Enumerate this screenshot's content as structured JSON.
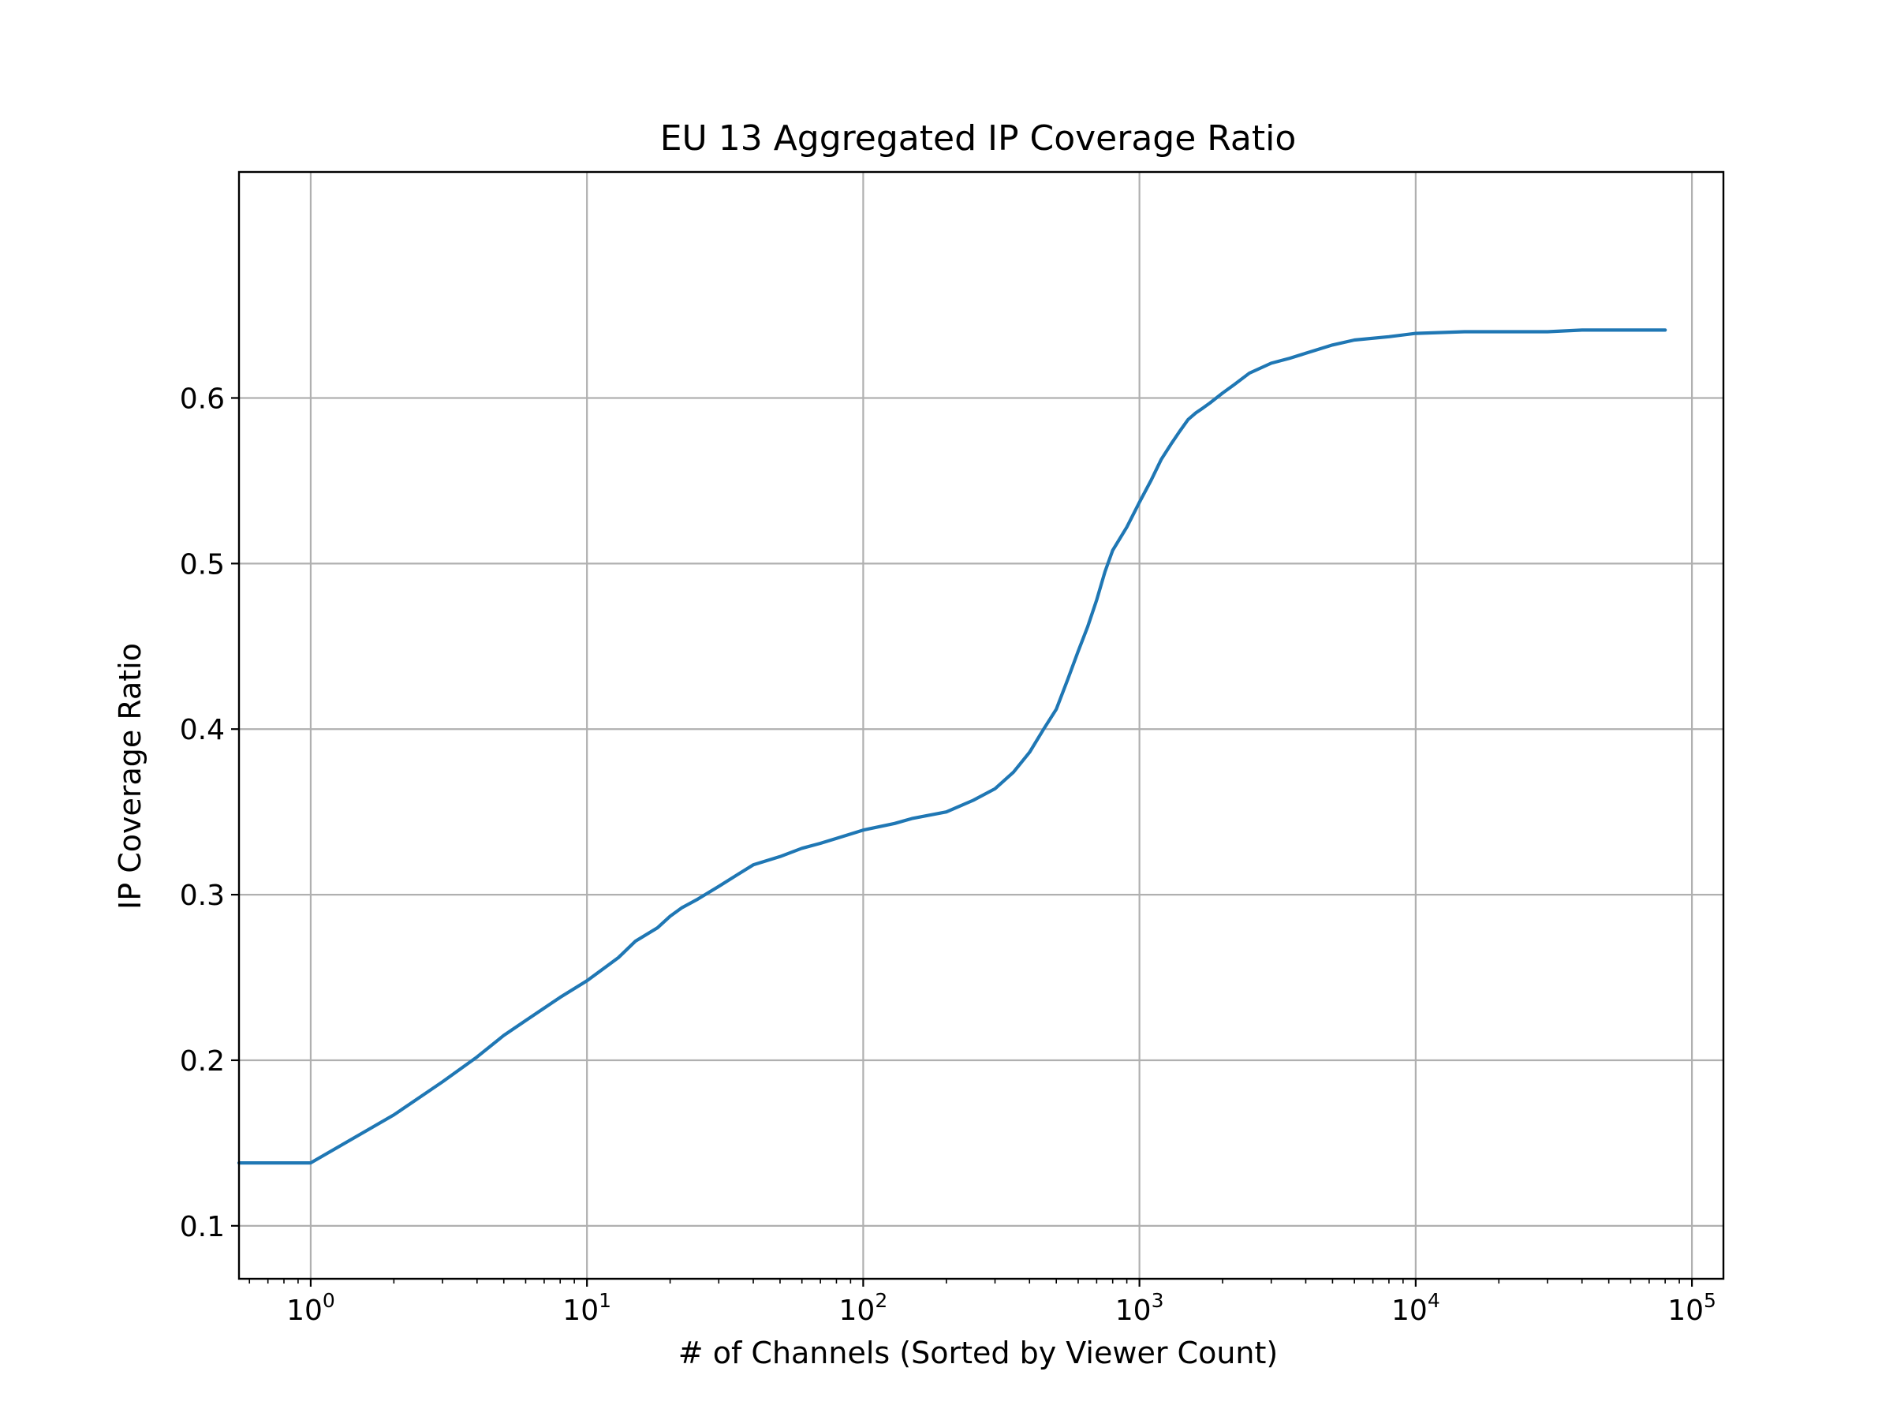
{
  "chart_data": {
    "type": "line",
    "title": "EU 13 Aggregated IP Coverage Ratio",
    "xlabel": "# of Channels (Sorted by Viewer Count)",
    "ylabel": "IP Coverage Ratio",
    "x_scale": "log",
    "xlim": [
      0.55,
      130000
    ],
    "ylim": [
      0.068,
      0.7365
    ],
    "grid": true,
    "line_color": "#1f77b4",
    "x_ticks": [
      {
        "value": 1,
        "base": "10",
        "exp": "0"
      },
      {
        "value": 10,
        "base": "10",
        "exp": "1"
      },
      {
        "value": 100,
        "base": "10",
        "exp": "2"
      },
      {
        "value": 1000,
        "base": "10",
        "exp": "3"
      },
      {
        "value": 10000,
        "base": "10",
        "exp": "4"
      },
      {
        "value": 100000,
        "base": "10",
        "exp": "5"
      }
    ],
    "y_ticks": [
      {
        "value": 0.1,
        "label": "0.1"
      },
      {
        "value": 0.2,
        "label": "0.2"
      },
      {
        "value": 0.3,
        "label": "0.3"
      },
      {
        "value": 0.4,
        "label": "0.4"
      },
      {
        "value": 0.5,
        "label": "0.5"
      },
      {
        "value": 0.6,
        "label": "0.6"
      }
    ],
    "series": [
      {
        "x": [
          0.55,
          1,
          2,
          3,
          4,
          5,
          6,
          8,
          10,
          13,
          15,
          18,
          20,
          22,
          25,
          30,
          35,
          40,
          50,
          60,
          70,
          80,
          100,
          130,
          150,
          200,
          250,
          300,
          350,
          400,
          450,
          500,
          550,
          600,
          650,
          700,
          750,
          800,
          900,
          1000,
          1100,
          1200,
          1300,
          1400,
          1500,
          1600,
          1700,
          1800,
          2000,
          2200,
          2500,
          3000,
          3500,
          4000,
          5000,
          6000,
          8000,
          10000,
          15000,
          20000,
          30000,
          40000,
          60000,
          80000
        ],
        "y": [
          0.138,
          0.138,
          0.167,
          0.187,
          0.202,
          0.215,
          0.224,
          0.238,
          0.248,
          0.262,
          0.272,
          0.28,
          0.287,
          0.292,
          0.297,
          0.305,
          0.312,
          0.318,
          0.323,
          0.328,
          0.331,
          0.334,
          0.339,
          0.343,
          0.346,
          0.35,
          0.357,
          0.364,
          0.374,
          0.386,
          0.4,
          0.412,
          0.43,
          0.447,
          0.462,
          0.478,
          0.495,
          0.508,
          0.522,
          0.537,
          0.55,
          0.563,
          0.572,
          0.58,
          0.587,
          0.591,
          0.594,
          0.597,
          0.603,
          0.608,
          0.615,
          0.621,
          0.624,
          0.627,
          0.632,
          0.635,
          0.637,
          0.639,
          0.64,
          0.64,
          0.64,
          0.641,
          0.641,
          0.641
        ]
      }
    ]
  }
}
